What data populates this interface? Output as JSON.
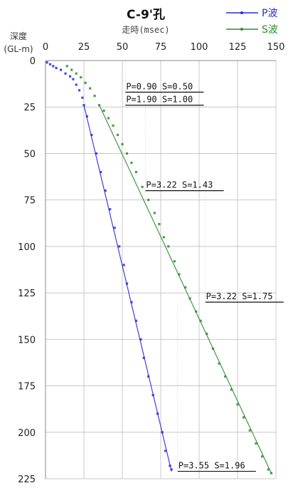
{
  "chart_data": {
    "type": "scatter",
    "title": "C-9'孔",
    "xlabel": "走時(msec)",
    "ylabel": "深度",
    "ylabel_unit": "(GL-m)",
    "xlim": [
      0,
      150
    ],
    "ylim": [
      0,
      225
    ],
    "x_axis_position": "top",
    "y_axis_inverted": true,
    "grid": true,
    "x_ticks": [
      "0",
      "25",
      "50",
      "75",
      "100",
      "125",
      "150"
    ],
    "y_ticks": [
      "0",
      "25",
      "50",
      "75",
      "100",
      "125",
      "150",
      "175",
      "200",
      "225"
    ],
    "legend_position": "top-right",
    "series": [
      {
        "name": "P波",
        "color": "#2b2bd6",
        "points": [
          [
            1,
            1
          ],
          [
            3,
            2
          ],
          [
            5,
            3
          ],
          [
            7,
            4
          ],
          [
            10,
            5
          ],
          [
            13,
            7
          ],
          [
            16,
            8.5
          ],
          [
            18,
            10
          ],
          [
            20,
            13
          ],
          [
            22,
            16
          ],
          [
            24,
            20
          ],
          [
            25,
            24
          ],
          [
            27,
            30
          ],
          [
            30,
            40
          ],
          [
            33,
            50
          ],
          [
            36,
            60
          ],
          [
            39,
            70
          ],
          [
            42,
            80
          ],
          [
            45,
            90
          ],
          [
            48,
            100
          ],
          [
            51,
            110
          ],
          [
            53,
            120
          ],
          [
            56,
            130
          ],
          [
            59,
            140
          ],
          [
            62,
            150
          ],
          [
            64,
            160
          ],
          [
            67,
            170
          ],
          [
            70,
            180
          ],
          [
            73,
            190
          ],
          [
            76,
            200
          ],
          [
            78,
            210
          ],
          [
            81,
            218
          ],
          [
            82,
            220
          ]
        ],
        "fit_line": [
          [
            25,
            24
          ],
          [
            82,
            221
          ]
        ]
      },
      {
        "name": "S波",
        "color": "#2e8b2e",
        "points": [
          [
            14,
            3
          ],
          [
            17,
            5
          ],
          [
            20,
            7
          ],
          [
            23,
            9
          ],
          [
            26,
            12
          ],
          [
            29,
            15
          ],
          [
            32,
            19
          ],
          [
            35,
            24
          ],
          [
            38,
            27
          ],
          [
            41,
            31
          ],
          [
            44,
            35
          ],
          [
            47,
            40
          ],
          [
            50,
            45
          ],
          [
            53,
            50
          ],
          [
            56,
            55
          ],
          [
            59,
            60
          ],
          [
            63,
            68
          ],
          [
            67,
            75
          ],
          [
            71,
            82
          ],
          [
            74,
            88
          ],
          [
            77,
            95
          ],
          [
            80,
            100
          ],
          [
            84,
            108
          ],
          [
            87,
            115
          ],
          [
            91,
            122
          ],
          [
            94,
            128
          ],
          [
            98,
            135
          ],
          [
            101,
            140
          ],
          [
            105,
            147
          ],
          [
            109,
            155
          ],
          [
            113,
            163
          ],
          [
            117,
            170
          ],
          [
            121,
            177
          ],
          [
            125,
            185
          ],
          [
            129,
            192
          ],
          [
            133,
            199
          ],
          [
            137,
            206
          ],
          [
            141,
            213
          ],
          [
            145,
            220
          ],
          [
            147,
            222
          ]
        ],
        "fit_line": [
          [
            35,
            24
          ],
          [
            147,
            222
          ]
        ]
      }
    ],
    "annotations": [
      {
        "text": "P=0.90 S=0.50",
        "depth_from": 0,
        "depth_to": 17,
        "time_from": 52,
        "time_to": 103
      },
      {
        "text": "P=1.90 S=1.00",
        "depth_from": 17,
        "depth_to": 24,
        "time_from": 52,
        "time_to": 103
      },
      {
        "text": "P=3.22 S=1.43",
        "depth_from": 24,
        "depth_to": 70,
        "time_from": 65,
        "time_to": 116
      },
      {
        "text": "P=3.22 S=1.75",
        "depth_from": 70,
        "depth_to": 130,
        "time_from": 104,
        "time_to": 155
      },
      {
        "text": "P=3.55 S=1.96",
        "depth_from": 130,
        "depth_to": 221,
        "time_from": 86,
        "time_to": 137
      }
    ]
  }
}
